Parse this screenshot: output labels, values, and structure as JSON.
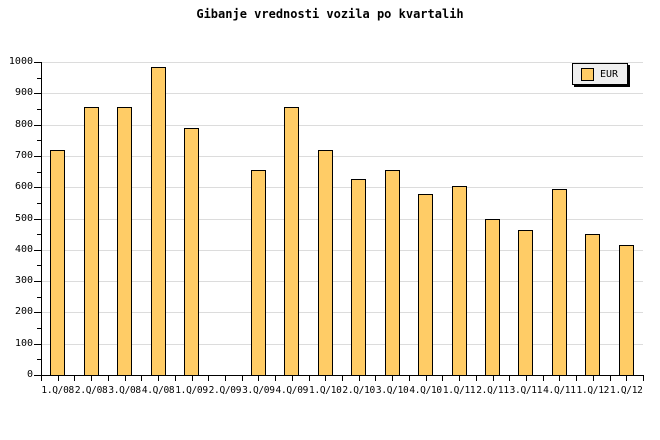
{
  "colors": {
    "background": "#FFFFFF",
    "bar_fill": "#FFCC66",
    "bar_border": "#000000",
    "gridline": "#DCDCDC",
    "axis": "#000000",
    "legend_bg": "#EFEFEF",
    "legend_shadow": "#000000",
    "text": "#000000"
  },
  "legend": {
    "label": "EUR",
    "swatch_color": "#FFCC66",
    "position": "top-right"
  },
  "chart_data": {
    "type": "bar",
    "title": "Gibanje vrednosti vozila po kvartalih",
    "xlabel": "",
    "ylabel": "",
    "categories": [
      "1.Q/08",
      "2.Q/08",
      "3.Q/08",
      "4.Q/08",
      "1.Q/09",
      "2.Q/09",
      "3.Q/09",
      "4.Q/09",
      "1.Q/10",
      "2.Q/10",
      "3.Q/10",
      "4.Q/10",
      "1.Q/11",
      "2.Q/11",
      "3.Q/11",
      "4.Q/11",
      "1.Q/12",
      "1.Q/12"
    ],
    "series": [
      {
        "name": "EUR",
        "values": [
          720,
          855,
          855,
          985,
          790,
          null,
          655,
          855,
          720,
          625,
          655,
          580,
          605,
          500,
          465,
          595,
          450,
          415
        ]
      }
    ],
    "ylim": [
      0,
      1000
    ],
    "yticks": [
      0,
      100,
      200,
      300,
      400,
      500,
      600,
      700,
      800,
      900,
      1000
    ],
    "minor_ytick_interval": 50,
    "grid": "horizontal",
    "legend_position": "top-right",
    "notes": "no bar rendered for 2.Q/09 (missing value)"
  }
}
